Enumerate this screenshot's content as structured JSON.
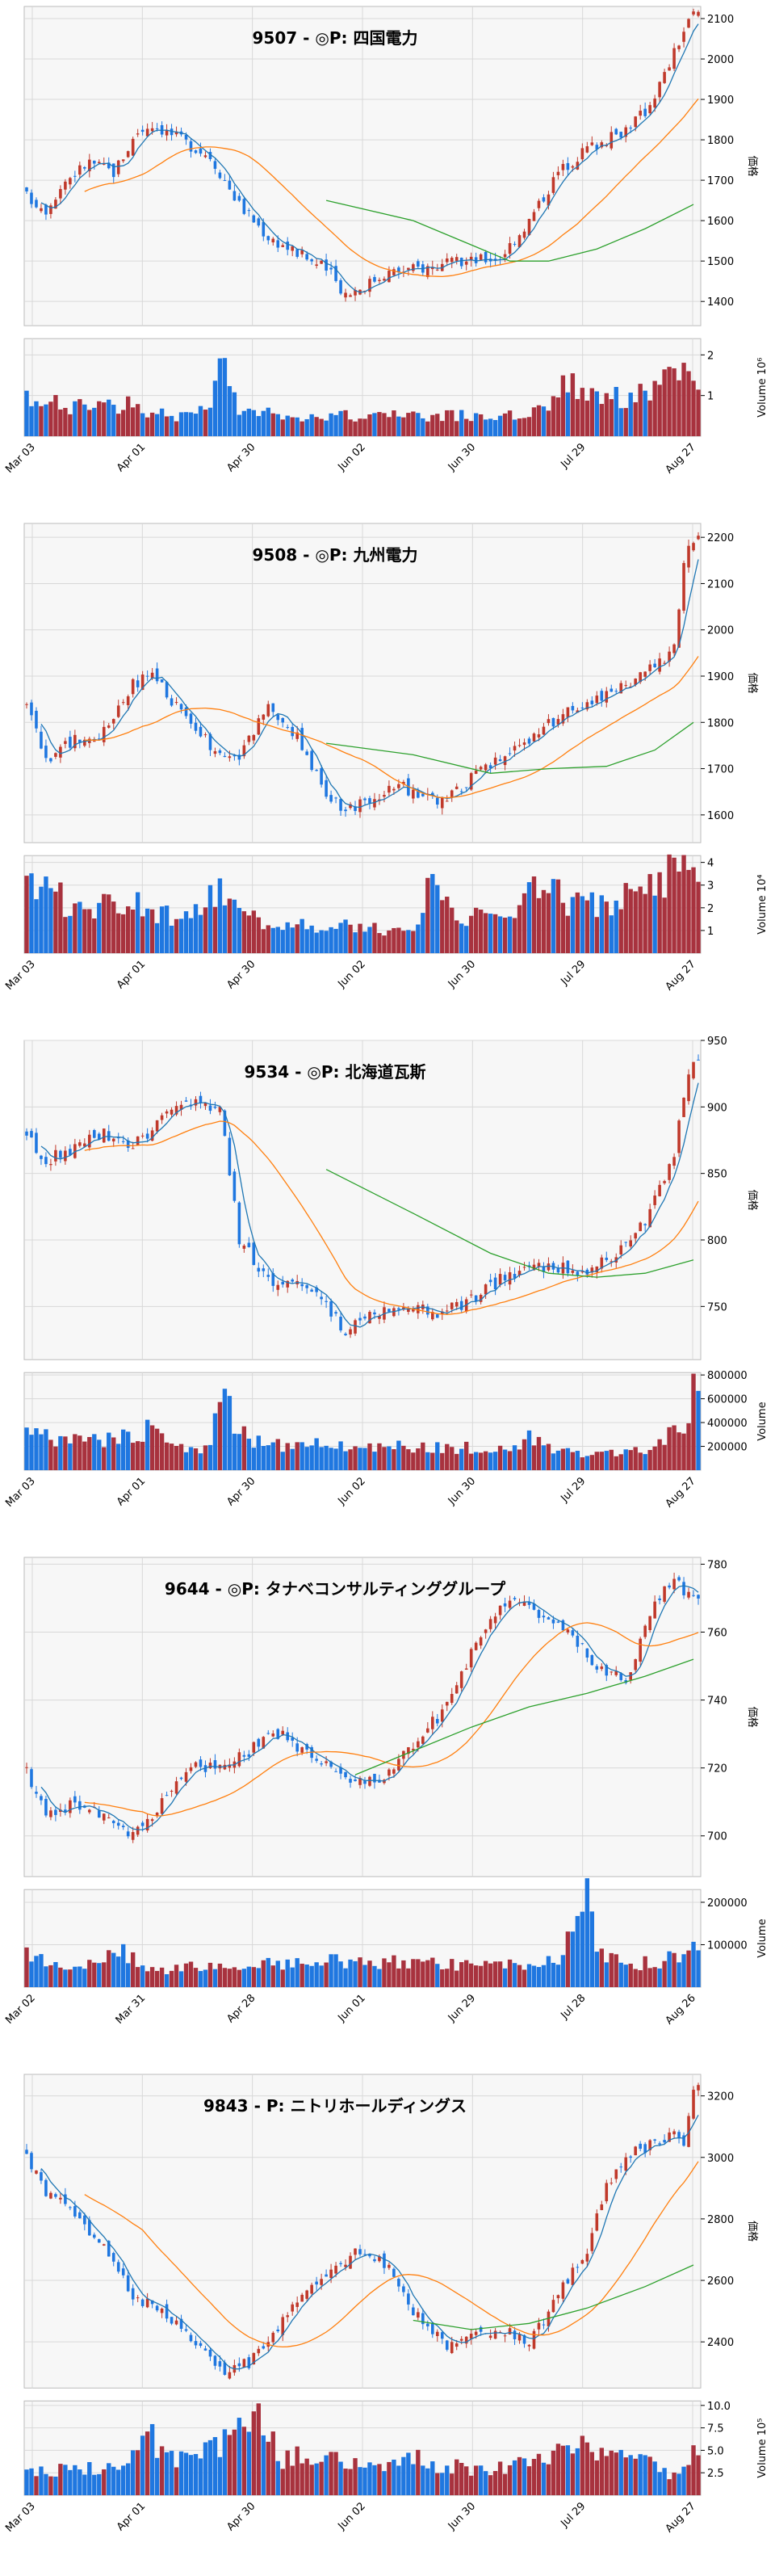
{
  "colors": {
    "up": "#c0392b",
    "down": "#1f77e0",
    "ma_fast": "#1f77b4",
    "ma_mid": "#ff7f0e",
    "ma_slow": "#2ca02c",
    "vol_up": "#a8323e",
    "vol_down": "#1f77e0",
    "bg": "#f7f7f7",
    "grid": "#d8d8d8"
  },
  "chart_data": [
    {
      "type": "candlestick",
      "title": "9507 - ◎P: 四国電力",
      "ylabel": "価格",
      "volume_label": "Volume",
      "volume_multiplier_label": "10⁶",
      "xtick_labels": [
        "Mar 03",
        "Apr 01",
        "Apr 30",
        "Jun 02",
        "Jun 30",
        "Jul 29",
        "Aug 27"
      ],
      "price_ticks": [
        1400,
        1500,
        1600,
        1700,
        1800,
        1900,
        2000,
        2100
      ],
      "price_ylim": [
        1340,
        2130
      ],
      "volume_ticks": [
        1,
        2
      ],
      "volume_tick_labels": [
        "1",
        "2"
      ],
      "volume_ylim": [
        0,
        2.4
      ],
      "close_path": [
        [
          0,
          1660
        ],
        [
          4,
          1630
        ],
        [
          8,
          1700
        ],
        [
          13,
          1745
        ],
        [
          18,
          1720
        ],
        [
          23,
          1820
        ],
        [
          26,
          1840
        ],
        [
          32,
          1800
        ],
        [
          38,
          1760
        ],
        [
          44,
          1640
        ],
        [
          50,
          1560
        ],
        [
          56,
          1520
        ],
        [
          62,
          1480
        ],
        [
          66,
          1420
        ],
        [
          70,
          1440
        ],
        [
          74,
          1470
        ],
        [
          80,
          1480
        ],
        [
          86,
          1490
        ],
        [
          92,
          1500
        ],
        [
          98,
          1510
        ],
        [
          104,
          1600
        ],
        [
          110,
          1720
        ],
        [
          116,
          1780
        ],
        [
          122,
          1810
        ],
        [
          128,
          1870
        ],
        [
          132,
          1960
        ],
        [
          136,
          2070
        ],
        [
          138,
          2110
        ]
      ],
      "volume_path": [
        [
          0,
          0.9
        ],
        [
          10,
          0.7
        ],
        [
          20,
          0.8
        ],
        [
          30,
          0.5
        ],
        [
          38,
          0.6
        ],
        [
          40,
          2.1
        ],
        [
          44,
          0.6
        ],
        [
          60,
          0.5
        ],
        [
          80,
          0.5
        ],
        [
          100,
          0.5
        ],
        [
          108,
          0.8
        ],
        [
          112,
          1.3
        ],
        [
          118,
          1.1
        ],
        [
          124,
          0.9
        ],
        [
          130,
          1.2
        ],
        [
          134,
          1.6
        ],
        [
          136,
          1.4
        ],
        [
          138,
          1.1
        ]
      ],
      "ma_slow_path": [
        [
          62,
          1650
        ],
        [
          80,
          1600
        ],
        [
          92,
          1540
        ],
        [
          100,
          1500
        ],
        [
          108,
          1500
        ],
        [
          118,
          1530
        ],
        [
          128,
          1580
        ],
        [
          138,
          1640
        ]
      ]
    },
    {
      "type": "candlestick",
      "title": "9508 - ◎P: 九州電力",
      "ylabel": "価格",
      "volume_label": "Volume",
      "volume_multiplier_label": "10⁴",
      "xtick_labels": [
        "Mar 03",
        "Apr 01",
        "Apr 30",
        "Jun 02",
        "Jun 30",
        "Jul 29",
        "Aug 27"
      ],
      "price_ticks": [
        1600,
        1700,
        1800,
        1900,
        2000,
        2100,
        2200
      ],
      "price_ylim": [
        1540,
        2230
      ],
      "volume_ticks": [
        1,
        2,
        3,
        4
      ],
      "volume_tick_labels": [
        "1",
        "2",
        "3",
        "4"
      ],
      "volume_ylim": [
        0,
        4.3
      ],
      "close_path": [
        [
          0,
          1850
        ],
        [
          4,
          1720
        ],
        [
          10,
          1760
        ],
        [
          16,
          1780
        ],
        [
          22,
          1880
        ],
        [
          26,
          1900
        ],
        [
          32,
          1820
        ],
        [
          38,
          1750
        ],
        [
          44,
          1720
        ],
        [
          50,
          1840
        ],
        [
          56,
          1770
        ],
        [
          62,
          1650
        ],
        [
          66,
          1610
        ],
        [
          72,
          1640
        ],
        [
          78,
          1660
        ],
        [
          84,
          1630
        ],
        [
          88,
          1640
        ],
        [
          94,
          1700
        ],
        [
          100,
          1740
        ],
        [
          106,
          1780
        ],
        [
          112,
          1830
        ],
        [
          118,
          1850
        ],
        [
          124,
          1880
        ],
        [
          130,
          1920
        ],
        [
          134,
          1960
        ],
        [
          136,
          2150
        ],
        [
          138,
          2200
        ]
      ],
      "volume_path": [
        [
          0,
          2.8
        ],
        [
          4,
          3.1
        ],
        [
          10,
          1.8
        ],
        [
          20,
          2.4
        ],
        [
          30,
          1.6
        ],
        [
          40,
          2.8
        ],
        [
          44,
          1.6
        ],
        [
          60,
          1.2
        ],
        [
          80,
          1.0
        ],
        [
          84,
          3.9
        ],
        [
          90,
          1.6
        ],
        [
          100,
          1.5
        ],
        [
          106,
          3.1
        ],
        [
          112,
          2.2
        ],
        [
          120,
          2.0
        ],
        [
          130,
          3.1
        ],
        [
          136,
          4.2
        ],
        [
          138,
          3.2
        ]
      ],
      "ma_slow_path": [
        [
          62,
          1755
        ],
        [
          80,
          1730
        ],
        [
          96,
          1690
        ],
        [
          108,
          1700
        ],
        [
          120,
          1705
        ],
        [
          130,
          1740
        ],
        [
          138,
          1800
        ]
      ]
    },
    {
      "type": "candlestick",
      "title": "9534 - ◎P: 北海道瓦斯",
      "ylabel": "価格",
      "volume_label": "Volume",
      "volume_multiplier_label": "",
      "xtick_labels": [
        "Mar 03",
        "Apr 01",
        "Apr 30",
        "Jun 02",
        "Jun 30",
        "Jul 29",
        "Aug 27"
      ],
      "price_ticks": [
        750,
        800,
        850,
        900,
        950
      ],
      "price_ylim": [
        710,
        950
      ],
      "volume_ticks": [
        200000,
        400000,
        600000,
        800000
      ],
      "volume_tick_labels": [
        "200000",
        "400000",
        "600000",
        "800000"
      ],
      "volume_ylim": [
        0,
        820000
      ],
      "close_path": [
        [
          0,
          880
        ],
        [
          4,
          860
        ],
        [
          10,
          870
        ],
        [
          16,
          880
        ],
        [
          22,
          870
        ],
        [
          28,
          890
        ],
        [
          34,
          905
        ],
        [
          40,
          900
        ],
        [
          44,
          800
        ],
        [
          50,
          770
        ],
        [
          56,
          770
        ],
        [
          62,
          750
        ],
        [
          66,
          730
        ],
        [
          70,
          745
        ],
        [
          78,
          750
        ],
        [
          86,
          745
        ],
        [
          92,
          755
        ],
        [
          98,
          770
        ],
        [
          104,
          780
        ],
        [
          110,
          780
        ],
        [
          116,
          775
        ],
        [
          122,
          790
        ],
        [
          128,
          815
        ],
        [
          134,
          860
        ],
        [
          136,
          910
        ],
        [
          138,
          935
        ]
      ],
      "volume_path": [
        [
          0,
          300000
        ],
        [
          10,
          250000
        ],
        [
          20,
          280000
        ],
        [
          26,
          350000
        ],
        [
          30,
          200000
        ],
        [
          38,
          180000
        ],
        [
          40,
          680000
        ],
        [
          44,
          300000
        ],
        [
          50,
          200000
        ],
        [
          60,
          230000
        ],
        [
          80,
          200000
        ],
        [
          100,
          180000
        ],
        [
          104,
          300000
        ],
        [
          110,
          150000
        ],
        [
          120,
          130000
        ],
        [
          130,
          180000
        ],
        [
          136,
          400000
        ],
        [
          138,
          720000
        ]
      ],
      "ma_slow_path": [
        [
          62,
          853
        ],
        [
          80,
          820
        ],
        [
          96,
          790
        ],
        [
          108,
          775
        ],
        [
          118,
          772
        ],
        [
          128,
          775
        ],
        [
          138,
          785
        ]
      ]
    },
    {
      "type": "candlestick",
      "title": "9644 - ◎P: タナベコンサルティンググループ",
      "ylabel": "価格",
      "volume_label": "Volume",
      "volume_multiplier_label": "",
      "xtick_labels": [
        "Mar 02",
        "Mar 31",
        "Apr 28",
        "Jun 01",
        "Jun 29",
        "Jul 28",
        "Aug 26"
      ],
      "price_ticks": [
        700,
        720,
        740,
        760,
        780
      ],
      "price_ylim": [
        688,
        782
      ],
      "volume_ticks": [
        100000,
        200000
      ],
      "volume_tick_labels": [
        "100000",
        "200000"
      ],
      "volume_ylim": [
        0,
        230000
      ],
      "close_path": [
        [
          0,
          720
        ],
        [
          4,
          705
        ],
        [
          10,
          710
        ],
        [
          16,
          705
        ],
        [
          22,
          700
        ],
        [
          28,
          710
        ],
        [
          34,
          720
        ],
        [
          40,
          720
        ],
        [
          46,
          725
        ],
        [
          52,
          730
        ],
        [
          58,
          725
        ],
        [
          64,
          720
        ],
        [
          70,
          715
        ],
        [
          76,
          720
        ],
        [
          82,
          730
        ],
        [
          88,
          740
        ],
        [
          94,
          760
        ],
        [
          100,
          770
        ],
        [
          106,
          765
        ],
        [
          112,
          760
        ],
        [
          118,
          750
        ],
        [
          124,
          745
        ],
        [
          130,
          770
        ],
        [
          134,
          775
        ],
        [
          138,
          770
        ]
      ],
      "volume_path": [
        [
          0,
          80000
        ],
        [
          10,
          40000
        ],
        [
          20,
          90000
        ],
        [
          24,
          40000
        ],
        [
          40,
          50000
        ],
        [
          60,
          60000
        ],
        [
          80,
          60000
        ],
        [
          100,
          50000
        ],
        [
          110,
          60000
        ],
        [
          116,
          210000
        ],
        [
          118,
          90000
        ],
        [
          124,
          50000
        ],
        [
          130,
          60000
        ],
        [
          136,
          70000
        ],
        [
          138,
          100000
        ]
      ],
      "ma_slow_path": [
        [
          68,
          718
        ],
        [
          80,
          725
        ],
        [
          92,
          732
        ],
        [
          104,
          738
        ],
        [
          116,
          742
        ],
        [
          128,
          747
        ],
        [
          138,
          752
        ]
      ]
    },
    {
      "type": "candlestick",
      "title": "9843 - P: ニトリホールディングス",
      "ylabel": "価格",
      "volume_label": "Volume",
      "volume_multiplier_label": "10⁵",
      "xtick_labels": [
        "Mar 03",
        "Apr 01",
        "Apr 30",
        "Jun 02",
        "Jun 30",
        "Jul 29",
        "Aug 27"
      ],
      "price_ticks": [
        2400,
        2600,
        2800,
        3000,
        3200
      ],
      "price_ylim": [
        2250,
        3270
      ],
      "volume_ticks": [
        2.5,
        5.0,
        7.5,
        10.0
      ],
      "volume_tick_labels": [
        "2.5",
        "5.0",
        "7.5",
        "10.0"
      ],
      "volume_ylim": [
        0,
        10.5
      ],
      "close_path": [
        [
          0,
          3000
        ],
        [
          4,
          2880
        ],
        [
          10,
          2820
        ],
        [
          16,
          2700
        ],
        [
          22,
          2550
        ],
        [
          28,
          2500
        ],
        [
          34,
          2420
        ],
        [
          40,
          2300
        ],
        [
          46,
          2330
        ],
        [
          52,
          2450
        ],
        [
          58,
          2560
        ],
        [
          64,
          2650
        ],
        [
          70,
          2700
        ],
        [
          76,
          2620
        ],
        [
          82,
          2450
        ],
        [
          88,
          2380
        ],
        [
          94,
          2420
        ],
        [
          100,
          2430
        ],
        [
          104,
          2400
        ],
        [
          110,
          2550
        ],
        [
          116,
          2700
        ],
        [
          120,
          2900
        ],
        [
          124,
          3000
        ],
        [
          130,
          3050
        ],
        [
          134,
          3080
        ],
        [
          136,
          3020
        ],
        [
          138,
          3240
        ]
      ],
      "volume_path": [
        [
          0,
          2.5
        ],
        [
          10,
          2.8
        ],
        [
          20,
          3.2
        ],
        [
          26,
          6.5
        ],
        [
          30,
          4.0
        ],
        [
          40,
          5.5
        ],
        [
          46,
          8.5
        ],
        [
          48,
          10.0
        ],
        [
          52,
          4.0
        ],
        [
          60,
          4.5
        ],
        [
          70,
          3.5
        ],
        [
          80,
          4.0
        ],
        [
          90,
          3.0
        ],
        [
          100,
          3.0
        ],
        [
          110,
          4.5
        ],
        [
          116,
          6.0
        ],
        [
          120,
          5.0
        ],
        [
          130,
          3.5
        ],
        [
          134,
          2.0
        ],
        [
          138,
          5.5
        ]
      ],
      "ma_slow_path": [
        [
          80,
          2470
        ],
        [
          92,
          2440
        ],
        [
          104,
          2460
        ],
        [
          116,
          2510
        ],
        [
          128,
          2580
        ],
        [
          138,
          2650
        ]
      ]
    }
  ]
}
